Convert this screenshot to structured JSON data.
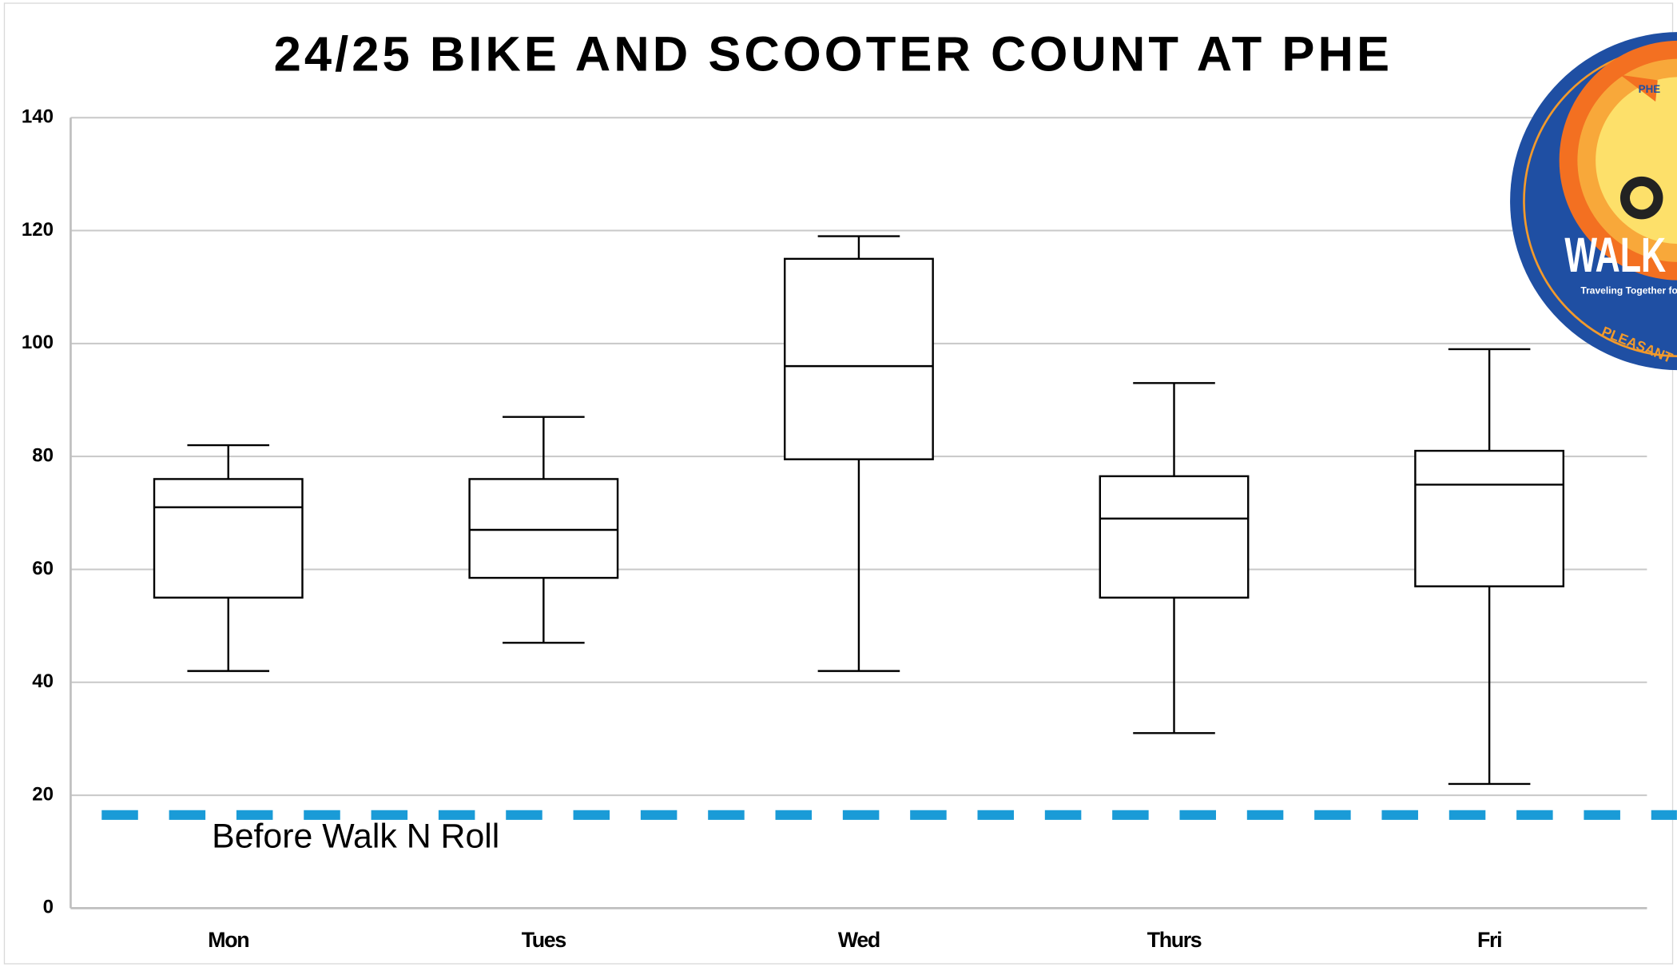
{
  "chart_data": {
    "type": "box",
    "title": "24/25 BIKE AND SCOOTER COUNT AT PHE",
    "categories": [
      "Mon",
      "Tues",
      "Wed",
      "Thurs",
      "Fri"
    ],
    "min": [
      42,
      47,
      42,
      31,
      22
    ],
    "q1": [
      55,
      58.5,
      79.5,
      55,
      57
    ],
    "median": [
      71,
      67,
      96,
      69,
      75
    ],
    "q3": [
      76,
      76,
      115,
      76.5,
      81
    ],
    "max": [
      82,
      87,
      119,
      93,
      99
    ],
    "color": "#000000",
    "ylim": [
      0,
      140
    ],
    "yticks": [
      0,
      20,
      40,
      60,
      80,
      100,
      120,
      140
    ],
    "grid": true,
    "reference_line": {
      "value": 16.5,
      "label": "Before Walk N Roll",
      "color": "#1a9bd7"
    }
  },
  "logo": {
    "badge": "PHE",
    "title": "WALK i",
    "tagline": "Traveling Together fo",
    "name": "PLEASANT"
  }
}
